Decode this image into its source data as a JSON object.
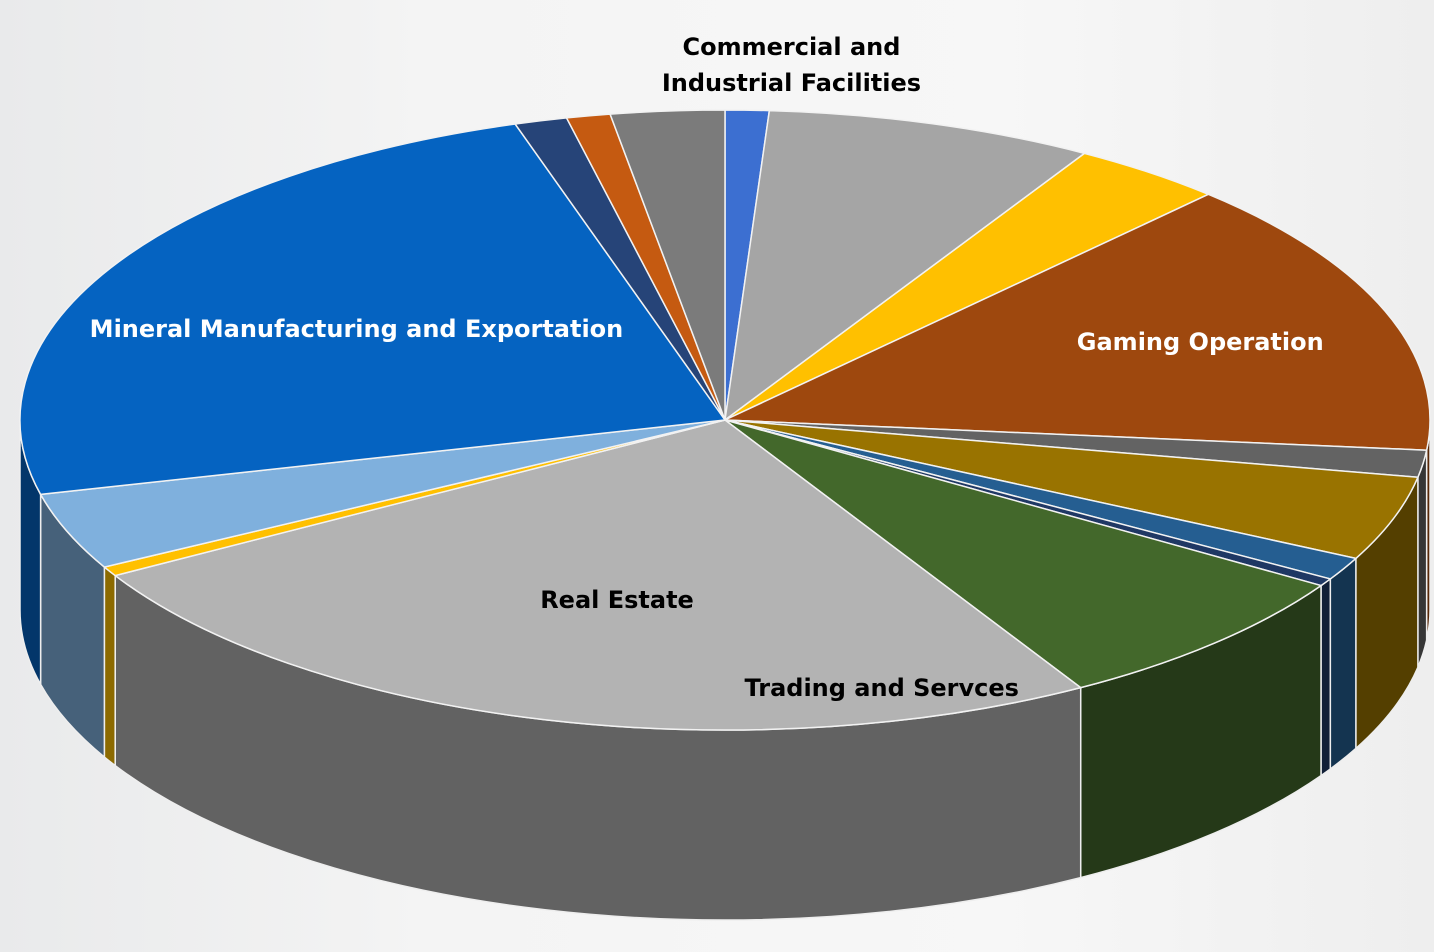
{
  "chart_data": {
    "type": "pie3d",
    "categories": [
      null,
      "Commercial and Industrial Facilities",
      null,
      "Gaming Operation",
      null,
      null,
      null,
      null,
      "Trading and Servces",
      "Real Estate",
      null,
      null,
      "Mineral Manufacturing and Exportation",
      null,
      null,
      null
    ],
    "values": [
      1,
      7.5,
      3.5,
      14.5,
      1.4,
      4.4,
      1.2,
      0.4,
      7.6,
      25,
      0.5,
      4,
      24,
      1.2,
      1,
      2.6
    ],
    "colors": [
      "#3c6fd1",
      "#a5a5a5",
      "#ffc000",
      "#9e480e",
      "#636363",
      "#997300",
      "#255e91",
      "#1f3864",
      "#43682b",
      "#b3b3b3",
      "#ffc000",
      "#7fb0dd",
      "#0563c1",
      "#264478",
      "#c55a11",
      "#7b7b7b"
    ]
  }
}
